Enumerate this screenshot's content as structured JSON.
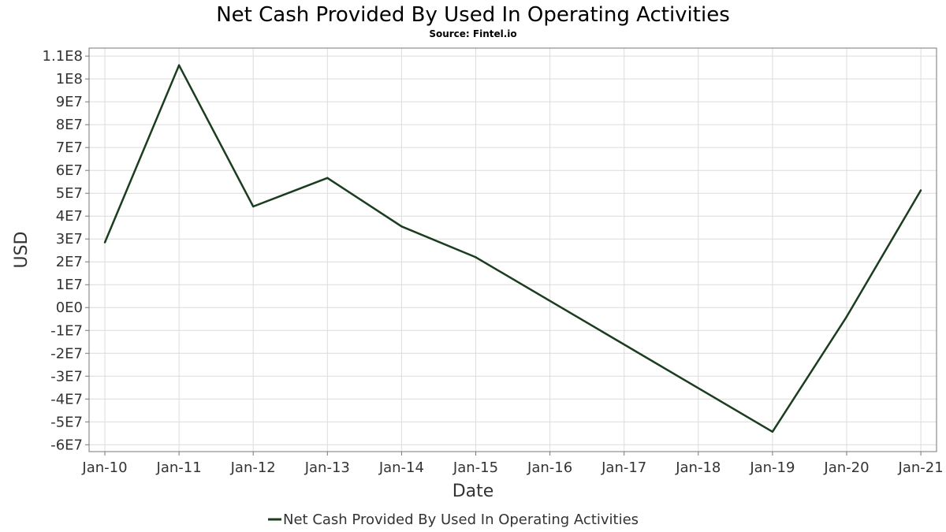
{
  "chart_data": {
    "type": "line",
    "title": "Net Cash Provided By Used In Operating Activities",
    "subtitle": "Source: Fintel.io",
    "xlabel": "Date",
    "ylabel": "USD",
    "categories": [
      "Jan-10",
      "Jan-11",
      "Jan-12",
      "Jan-13",
      "Jan-14",
      "Jan-15",
      "Jan-16",
      "Jan-17",
      "Jan-18",
      "Jan-19",
      "Jan-20",
      "Jan-21"
    ],
    "ylim": [
      -63000000,
      113500000
    ],
    "yticks": [
      {
        "value": 110000000,
        "label": "1.1E8"
      },
      {
        "value": 100000000,
        "label": "1E8"
      },
      {
        "value": 90000000,
        "label": "9E7"
      },
      {
        "value": 80000000,
        "label": "8E7"
      },
      {
        "value": 70000000,
        "label": "7E7"
      },
      {
        "value": 60000000,
        "label": "6E7"
      },
      {
        "value": 50000000,
        "label": "5E7"
      },
      {
        "value": 40000000,
        "label": "4E7"
      },
      {
        "value": 30000000,
        "label": "3E7"
      },
      {
        "value": 20000000,
        "label": "2E7"
      },
      {
        "value": 10000000,
        "label": "1E7"
      },
      {
        "value": 0,
        "label": "0E0"
      },
      {
        "value": -10000000,
        "label": "-1E7"
      },
      {
        "value": -20000000,
        "label": "-2E7"
      },
      {
        "value": -30000000,
        "label": "-3E7"
      },
      {
        "value": -40000000,
        "label": "-4E7"
      },
      {
        "value": -50000000,
        "label": "-5E7"
      },
      {
        "value": -60000000,
        "label": "-6E7"
      }
    ],
    "grid": true,
    "legend_position": "bottom",
    "series": [
      {
        "name": "Net Cash Provided By Used In Operating Activities",
        "color": "#1b3d1f",
        "points": [
          {
            "x": 0.0,
            "y": 28500000
          },
          {
            "x": 1.0,
            "y": 106000000
          },
          {
            "x": 2.0,
            "y": 44200000
          },
          {
            "x": 3.0,
            "y": 56700000
          },
          {
            "x": 4.0,
            "y": 35500000
          },
          {
            "x": 5.0,
            "y": 22000000
          },
          {
            "x": 9.0,
            "y": -54300000
          },
          {
            "x": 10.0,
            "y": -4000000
          },
          {
            "x": 11.0,
            "y": 51300000
          }
        ]
      }
    ]
  }
}
